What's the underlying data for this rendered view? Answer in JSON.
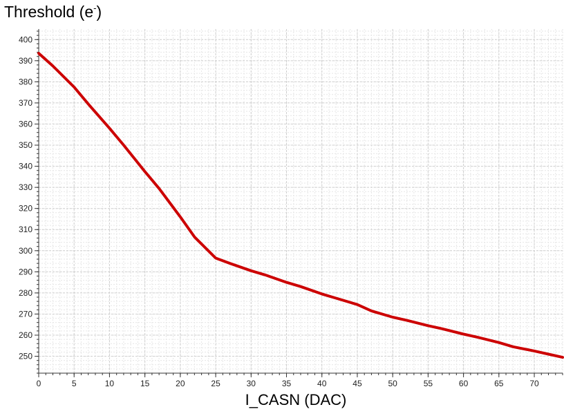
{
  "chart_data": {
    "type": "line",
    "title": "Threshold (e",
    "title_superscript": "-",
    "title_suffix": ")",
    "xlabel": "I_CASN (DAC)",
    "ylabel": "",
    "xlim": [
      0,
      74
    ],
    "ylim": [
      242,
      405
    ],
    "x_ticks": [
      0,
      5,
      10,
      15,
      20,
      25,
      30,
      35,
      40,
      45,
      50,
      55,
      60,
      65,
      70
    ],
    "y_ticks": [
      250,
      260,
      270,
      280,
      290,
      300,
      310,
      320,
      330,
      340,
      350,
      360,
      370,
      380,
      390,
      400
    ],
    "grid": true,
    "line_color": "#cc0000",
    "series": [
      {
        "x": [
          0,
          2,
          5,
          7,
          10,
          12,
          15,
          17,
          20,
          22,
          25,
          27,
          30,
          32,
          35,
          37,
          40,
          42,
          45,
          47,
          50,
          52,
          55,
          57,
          60,
          62,
          65,
          67,
          70,
          72,
          74
        ],
        "values": [
          393.5,
          387.5,
          377.5,
          369.5,
          358,
          350,
          337.5,
          329.5,
          316,
          306.5,
          296.5,
          294,
          290.5,
          288.5,
          285,
          283,
          279.5,
          277.5,
          274.5,
          271.5,
          268.5,
          267,
          264.5,
          263,
          260.5,
          259,
          256.5,
          254.5,
          252.5,
          251,
          249.5
        ]
      }
    ]
  }
}
